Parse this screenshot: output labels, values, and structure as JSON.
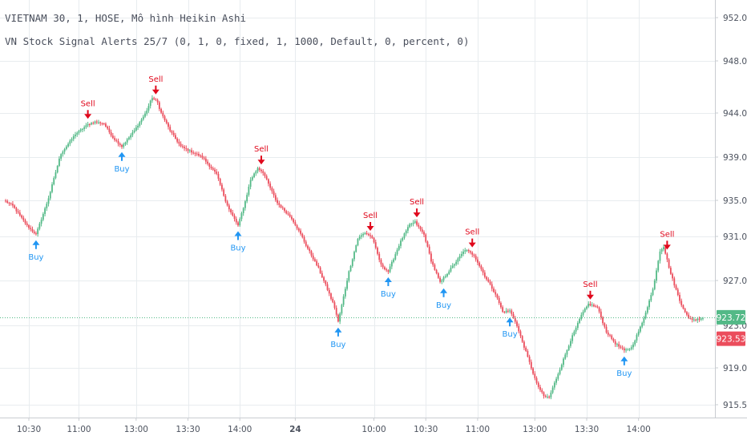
{
  "legend": {
    "line1": "VIETNAM 30, 1, HOSE, Mô hình Heikin Ashi",
    "line2": "VN Stock Signal Alerts 25/7 (0, 1, 0, fixed, 1, 1000, Default, 0, percent, 0)"
  },
  "colors": {
    "up": "#53b987",
    "down": "#eb4d5c",
    "buy": "#2196f3",
    "sell": "#e0081c",
    "grid": "#e8ecef",
    "axis_text": "#4c525e",
    "last_price": "#53b987",
    "prev_price": "#eb4d5c"
  },
  "chart_data": {
    "type": "candlestick",
    "style": "Heikin Ashi",
    "ylim": [
      914.5,
      954.0
    ],
    "y_ticks": [
      915.5,
      919.0,
      923.0,
      927.0,
      931.0,
      935.0,
      939.0,
      944.0,
      948.0,
      952.0
    ],
    "y_tick_labels": [
      "915.50",
      "919.00",
      "923.00",
      "927.00",
      "931.00",
      "935.00",
      "939.00",
      "944.00",
      "948.00",
      "952.00"
    ],
    "x_tick_labels": [
      "10:30",
      "11:00",
      "13:00",
      "13:30",
      "14:00",
      "24",
      "10:00",
      "10:30",
      "11:00",
      "13:00",
      "13:30",
      "14:00"
    ],
    "last_price": 923.72,
    "last_price_label": "923.72",
    "second_price": 923.53,
    "second_price_label": "923.53",
    "price_path": [
      [
        0,
        934.9
      ],
      [
        4,
        934.4
      ],
      [
        12,
        932.2
      ],
      [
        17,
        931.2
      ],
      [
        25,
        935.8
      ],
      [
        31,
        939.4
      ],
      [
        39,
        941.6
      ],
      [
        46,
        942.7
      ],
      [
        50,
        943.0
      ],
      [
        55,
        942.8
      ],
      [
        60,
        941.2
      ],
      [
        65,
        940.2
      ],
      [
        72,
        942.0
      ],
      [
        78,
        943.9
      ],
      [
        82,
        945.2
      ],
      [
        85,
        944.8
      ],
      [
        92,
        942.0
      ],
      [
        98,
        940.2
      ],
      [
        104,
        939.6
      ],
      [
        110,
        939.0
      ],
      [
        118,
        937.4
      ],
      [
        125,
        934.0
      ],
      [
        130,
        932.2
      ],
      [
        137,
        936.9
      ],
      [
        141,
        938.0
      ],
      [
        144,
        937.6
      ],
      [
        152,
        934.7
      ],
      [
        160,
        933.0
      ],
      [
        168,
        930.2
      ],
      [
        175,
        928.1
      ],
      [
        180,
        926.2
      ],
      [
        184,
        924.6
      ],
      [
        186,
        923.3
      ],
      [
        192,
        927.8
      ],
      [
        197,
        930.8
      ],
      [
        201,
        931.4
      ],
      [
        205,
        930.9
      ],
      [
        210,
        928.4
      ],
      [
        214,
        927.8
      ],
      [
        220,
        930.2
      ],
      [
        226,
        932.3
      ],
      [
        229,
        932.6
      ],
      [
        234,
        931.2
      ],
      [
        238,
        928.8
      ],
      [
        243,
        926.8
      ],
      [
        250,
        928.3
      ],
      [
        257,
        929.8
      ],
      [
        262,
        929.3
      ],
      [
        268,
        927.4
      ],
      [
        274,
        925.8
      ],
      [
        278,
        924.2
      ],
      [
        282,
        924.3
      ],
      [
        285,
        923.4
      ],
      [
        291,
        920.5
      ],
      [
        297,
        917.5
      ],
      [
        301,
        916.3
      ],
      [
        304,
        916.2
      ],
      [
        310,
        918.9
      ],
      [
        316,
        921.6
      ],
      [
        322,
        923.9
      ],
      [
        326,
        924.9
      ],
      [
        331,
        924.6
      ],
      [
        336,
        922.4
      ],
      [
        341,
        921.3
      ],
      [
        346,
        920.6
      ],
      [
        350,
        920.9
      ],
      [
        356,
        923.2
      ],
      [
        362,
        926.2
      ],
      [
        366,
        929.7
      ],
      [
        368,
        930.1
      ],
      [
        372,
        927.6
      ],
      [
        377,
        925.2
      ],
      [
        382,
        923.6
      ],
      [
        386,
        923.5
      ],
      [
        390,
        923.7
      ]
    ],
    "signals": [
      {
        "type": "Buy",
        "index": 17,
        "price": 931.2,
        "label": "Buy"
      },
      {
        "type": "Sell",
        "index": 46,
        "price": 942.7,
        "label": "Sell"
      },
      {
        "type": "Buy",
        "index": 65,
        "price": 940.2,
        "label": "Buy"
      },
      {
        "type": "Sell",
        "index": 84,
        "price": 945.0,
        "label": "Sell"
      },
      {
        "type": "Buy",
        "index": 130,
        "price": 932.2,
        "label": "Buy"
      },
      {
        "type": "Sell",
        "index": 143,
        "price": 937.8,
        "label": "Sell"
      },
      {
        "type": "Buy",
        "index": 186,
        "price": 923.3,
        "label": "Buy"
      },
      {
        "type": "Sell",
        "index": 204,
        "price": 931.0,
        "label": "Sell"
      },
      {
        "type": "Buy",
        "index": 214,
        "price": 927.8,
        "label": "Buy"
      },
      {
        "type": "Sell",
        "index": 230,
        "price": 932.5,
        "label": "Sell"
      },
      {
        "type": "Buy",
        "index": 245,
        "price": 926.8,
        "label": "Buy"
      },
      {
        "type": "Sell",
        "index": 261,
        "price": 929.5,
        "label": "Sell"
      },
      {
        "type": "Buy",
        "index": 282,
        "price": 924.2,
        "label": "Buy"
      },
      {
        "type": "Sell",
        "index": 327,
        "price": 924.8,
        "label": "Sell"
      },
      {
        "type": "Buy",
        "index": 346,
        "price": 920.6,
        "label": "Buy"
      },
      {
        "type": "Sell",
        "index": 370,
        "price": 929.3,
        "label": "Sell"
      }
    ]
  }
}
